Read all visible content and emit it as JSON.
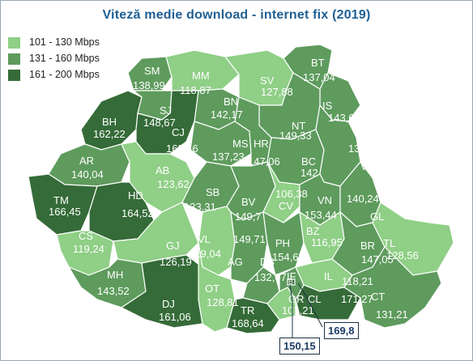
{
  "title": "Viteză medie download - internet fix (2019)",
  "legend": [
    {
      "label": "101 - 130 Mbps",
      "color": "#8fcf86"
    },
    {
      "label": "131 - 160 Mbps",
      "color": "#5e9b5d"
    },
    {
      "label": "161 - 200 Mbps",
      "color": "#356b38"
    }
  ],
  "colors": {
    "light": "#8fcf86",
    "mid": "#5e9b5d",
    "dark": "#356b38",
    "title": "#1f5f93",
    "border": "#ffffff"
  },
  "counties": [
    {
      "code": "SM",
      "value": "138,99",
      "speed": 138.99
    },
    {
      "code": "MM",
      "value": "118,87",
      "speed": 118.87
    },
    {
      "code": "SV",
      "value": "127,88",
      "speed": 127.88
    },
    {
      "code": "BT",
      "value": "137,04",
      "speed": 137.04
    },
    {
      "code": "BH",
      "value": "162,22",
      "speed": 162.22
    },
    {
      "code": "SJ",
      "value": "148,67",
      "speed": 148.67
    },
    {
      "code": "BN",
      "value": "142,17",
      "speed": 142.17
    },
    {
      "code": "IS",
      "value": "143,68",
      "speed": 143.68
    },
    {
      "code": "CJ",
      "value": "168,46",
      "speed": 168.46
    },
    {
      "code": "NT",
      "value": "149,33",
      "speed": 149.33
    },
    {
      "code": "MS",
      "value": "137,23",
      "speed": 137.23
    },
    {
      "code": "HR",
      "value": "147,06",
      "speed": 147.06
    },
    {
      "code": "BC",
      "value": "142",
      "speed": 142
    },
    {
      "code": "VS",
      "value": "131,79",
      "speed": 131.79
    },
    {
      "code": "AR",
      "value": "140,04",
      "speed": 140.04
    },
    {
      "code": "AB",
      "value": "123,62",
      "speed": 123.62
    },
    {
      "code": "TM",
      "value": "166,45",
      "speed": 166.45
    },
    {
      "code": "HD",
      "value": "164,52",
      "speed": 164.52
    },
    {
      "code": "SB",
      "value": "133,31",
      "speed": 133.31
    },
    {
      "code": "BV",
      "value": "149,7",
      "speed": 149.7
    },
    {
      "code": "CV",
      "value": "106,38",
      "speed": 106.38
    },
    {
      "code": "VN",
      "value": "153,44",
      "speed": 153.44
    },
    {
      "code": "GL",
      "value": "140,24",
      "speed": 140.24
    },
    {
      "code": "CS",
      "value": "119,24",
      "speed": 119.24
    },
    {
      "code": "VL",
      "value": "119,04",
      "speed": 119.04
    },
    {
      "code": "AG",
      "value": "149,71",
      "speed": 149.71
    },
    {
      "code": "PH",
      "value": "154,67",
      "speed": 154.67
    },
    {
      "code": "BZ",
      "value": "116,95",
      "speed": 116.95
    },
    {
      "code": "BR",
      "value": "147,05",
      "speed": 147.05
    },
    {
      "code": "TL",
      "value": "128,56",
      "speed": 128.56
    },
    {
      "code": "GJ",
      "value": "126,19",
      "speed": 126.19
    },
    {
      "code": "MH",
      "value": "143,52",
      "speed": 143.52
    },
    {
      "code": "DB",
      "value": "132,07",
      "speed": 132.07
    },
    {
      "code": "IL",
      "value": "118,21",
      "speed": 118.21
    },
    {
      "code": "DJ",
      "value": "161,06",
      "speed": 161.06
    },
    {
      "code": "OT",
      "value": "128,81",
      "speed": 128.81
    },
    {
      "code": "TR",
      "value": "168,64",
      "speed": 168.64
    },
    {
      "code": "GR",
      "value": "101,21",
      "speed": 101.21
    },
    {
      "code": "CL",
      "value": "171,27",
      "speed": 171.27
    },
    {
      "code": "CT",
      "value": "131,21",
      "speed": 131.21
    }
  ],
  "callouts": [
    {
      "code": "IF",
      "value": "150,15",
      "speed": 150.15
    },
    {
      "code": "B",
      "value": "169,8",
      "speed": 169.8
    }
  ]
}
